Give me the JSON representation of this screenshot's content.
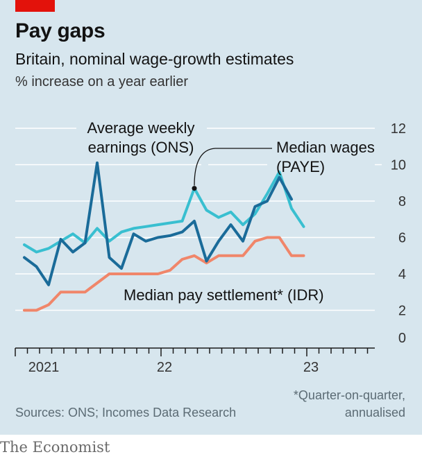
{
  "colors": {
    "accent": "#e3120b",
    "background": "#d7e6ee",
    "ons": "#1a6b99",
    "paye": "#39bfd0",
    "idr": "#f0866a",
    "grid": "#ffffff",
    "axis": "#1a1a1a"
  },
  "header": {
    "title": "Pay gaps",
    "subtitle": "Britain, nominal wage-growth estimates",
    "unit": "% increase on a year earlier"
  },
  "footer": {
    "source": "Sources: ONS; Incomes Data Research",
    "footnote_line1": "*Quarter-on-quarter,",
    "footnote_line2": "annualised",
    "brand": "The Economist"
  },
  "chart_data": {
    "type": "line",
    "x_start": "2021-01",
    "x_step": "month",
    "x_axis_labels": [
      "2021",
      "22",
      "23"
    ],
    "ylim": [
      0,
      12
    ],
    "yticks": [
      0,
      2,
      4,
      6,
      8,
      10,
      12
    ],
    "y_axis_position": "right",
    "grid": true,
    "series": [
      {
        "name": "Average weekly earnings (ONS)",
        "label_line1": "Average weekly",
        "label_line2": "earnings (ONS)",
        "color": "#1a6b99",
        "values": [
          4.9,
          4.4,
          3.4,
          5.9,
          5.2,
          5.7,
          10.1,
          4.9,
          4.3,
          6.2,
          5.8,
          6.0,
          6.1,
          6.3,
          6.9,
          4.7,
          5.8,
          6.7,
          5.8,
          7.7,
          8.0,
          9.3,
          8.1
        ]
      },
      {
        "name": "Median wages (PAYE)",
        "label_line1": "Median wages",
        "label_line2": "(PAYE)",
        "color": "#39bfd0",
        "values": [
          5.6,
          5.2,
          5.4,
          5.8,
          6.2,
          5.7,
          6.5,
          5.8,
          6.3,
          6.5,
          6.6,
          6.7,
          6.8,
          6.9,
          8.7,
          7.5,
          7.1,
          7.4,
          6.7,
          7.3,
          8.4,
          9.6,
          7.6,
          6.6
        ]
      },
      {
        "name": "Median pay settlement* (IDR)",
        "label_line1": "Median pay settlement* (IDR)",
        "color": "#f0866a",
        "values": [
          2.0,
          2.0,
          2.3,
          3.0,
          3.0,
          3.0,
          3.5,
          4.0,
          4.0,
          4.0,
          4.0,
          4.0,
          4.2,
          4.8,
          5.0,
          4.6,
          5.0,
          5.0,
          5.0,
          5.8,
          6.0,
          6.0,
          5.0,
          5.0
        ]
      }
    ]
  }
}
